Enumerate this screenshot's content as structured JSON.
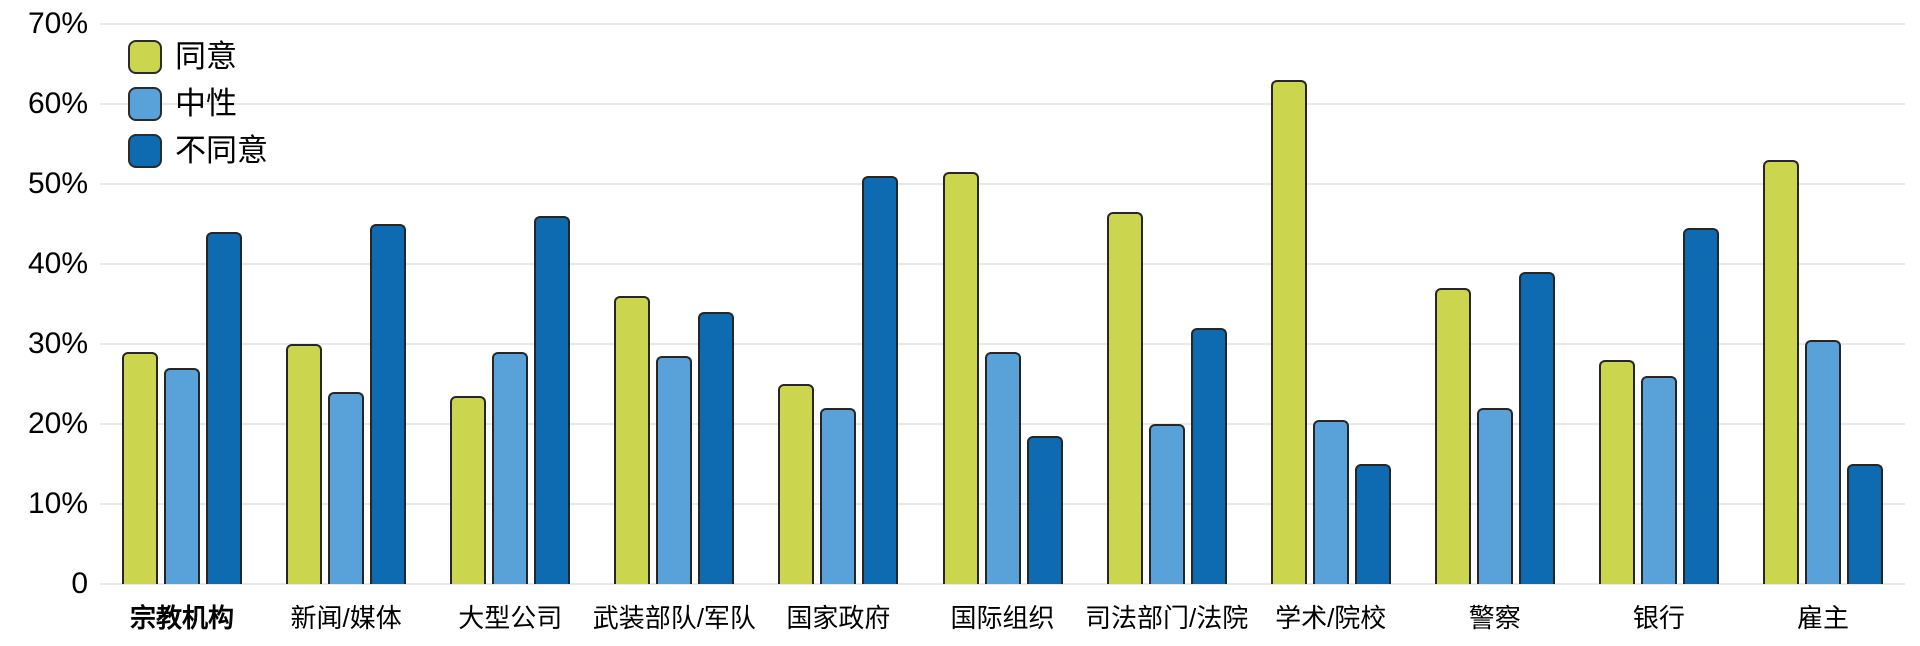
{
  "chart_data": {
    "type": "bar",
    "title": "",
    "xlabel": "",
    "ylabel": "",
    "categories": [
      "宗教机构",
      "新闻/媒体",
      "大型公司",
      "武装部队/军队",
      "国家政府",
      "国际组织",
      "司法部门/法院",
      "学术/院校",
      "警察",
      "银行",
      "雇主"
    ],
    "series": [
      {
        "name": "同意",
        "color": "#cbd54d",
        "values": [
          29,
          30,
          23.5,
          36,
          25,
          51.5,
          46.5,
          63,
          37,
          28,
          53
        ]
      },
      {
        "name": "中性",
        "color": "#58a2d9",
        "values": [
          27,
          24,
          29,
          28.5,
          22,
          29,
          20,
          20.5,
          22,
          26,
          30.5
        ]
      },
      {
        "name": "不同意",
        "color": "#0e6bb2",
        "values": [
          44,
          45,
          46,
          34,
          51,
          18.5,
          32,
          15,
          39,
          44.5,
          15
        ]
      }
    ],
    "ylim": [
      0,
      70
    ],
    "yticks": [
      {
        "value": 0,
        "label": "0"
      },
      {
        "value": 10,
        "label": "10%"
      },
      {
        "value": 20,
        "label": "20%"
      },
      {
        "value": 30,
        "label": "30%"
      },
      {
        "value": 40,
        "label": "40%"
      },
      {
        "value": 50,
        "label": "50%"
      },
      {
        "value": 60,
        "label": "60%"
      },
      {
        "value": 70,
        "label": "70%"
      }
    ],
    "grid": true,
    "legend_position": "top-left",
    "emphasized_category_index": 0
  },
  "colors": {
    "background": "#ffffff",
    "gridline": "#e9e9e9",
    "bar_border": "#262626",
    "text": "#000000"
  }
}
